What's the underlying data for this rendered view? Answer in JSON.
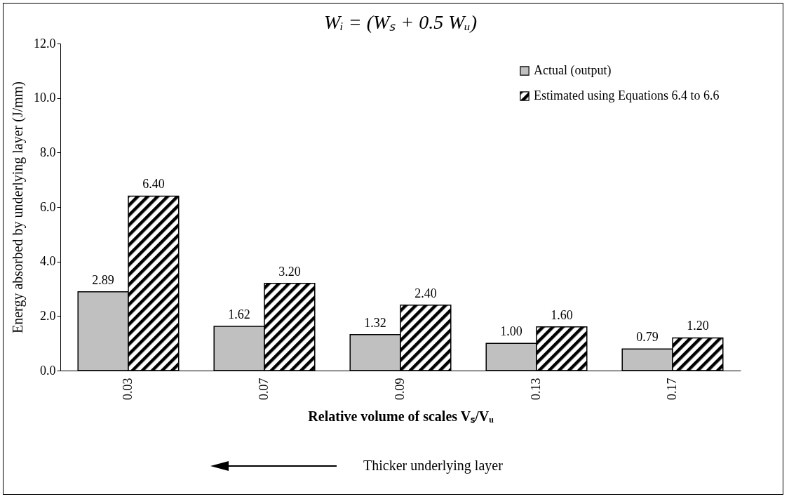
{
  "chart_data": {
    "type": "bar",
    "title": "Wᵢ = (Wₛ + 0.5 Wᵤ)",
    "xlabel": "Relative volume of scales Vₛ/Vᵤ",
    "ylabel": "Energy absorbed by underlying layer (J/mm)",
    "categories": [
      "0.03",
      "0.07",
      "0.09",
      "0.13",
      "0.17"
    ],
    "series": [
      {
        "name": "Actual (output)",
        "color": "#c0c0c0",
        "values": [
          2.89,
          1.62,
          1.32,
          1.0,
          0.79
        ],
        "value_labels": [
          "2.89",
          "1.62",
          "1.32",
          "1.00",
          "0.79"
        ]
      },
      {
        "name": "Estimated using Equations 6.4 to 6.6",
        "color": "#000000",
        "values": [
          6.4,
          3.2,
          2.4,
          1.6,
          1.2
        ],
        "value_labels": [
          "6.40",
          "3.20",
          "2.40",
          "1.60",
          "1.20"
        ]
      }
    ],
    "ylim": [
      0,
      12
    ],
    "yticks": [
      {
        "value": 0,
        "label": "0.0"
      },
      {
        "value": 2,
        "label": "2.0"
      },
      {
        "value": 4,
        "label": "4.0"
      },
      {
        "value": 6,
        "label": "6.0"
      },
      {
        "value": 8,
        "label": "8.0"
      },
      {
        "value": 10,
        "label": "10.0"
      },
      {
        "value": 12,
        "label": "12.0"
      }
    ],
    "grid": false,
    "legend": "top right",
    "annotations": [
      "Thicker underlying layer"
    ]
  }
}
